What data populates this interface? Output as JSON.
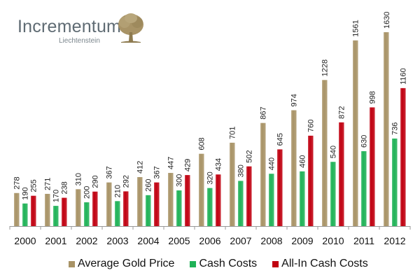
{
  "logo": {
    "title": "Incrementum",
    "subtitle": "Liechtenstein",
    "icon": "oak-tree-icon"
  },
  "colors": {
    "gold": "#a89366",
    "green": "#1fb257",
    "red": "#c00010",
    "axis": "#999999"
  },
  "chart_data": {
    "type": "bar",
    "title": "",
    "xlabel": "",
    "ylabel": "",
    "ylim": [
      0,
      1630
    ],
    "grid": false,
    "legend_position": "bottom",
    "categories": [
      "2000",
      "2001",
      "2002",
      "2003",
      "2004",
      "2005",
      "2006",
      "2007",
      "2008",
      "2009",
      "2010",
      "2011",
      "2012"
    ],
    "series": [
      {
        "name": "Average Gold Price",
        "color": "#a89366",
        "values": [
          278,
          271,
          310,
          367,
          412,
          447,
          608,
          701,
          867,
          974,
          1228,
          1561,
          1630
        ]
      },
      {
        "name": "Cash Costs",
        "color": "#1fb257",
        "values": [
          190,
          170,
          200,
          210,
          260,
          300,
          320,
          380,
          440,
          460,
          540,
          630,
          736
        ]
      },
      {
        "name": "All-In Cash Costs",
        "color": "#c00010",
        "values": [
          255,
          238,
          290,
          292,
          367,
          429,
          434,
          502,
          645,
          760,
          872,
          998,
          1160
        ]
      }
    ]
  }
}
